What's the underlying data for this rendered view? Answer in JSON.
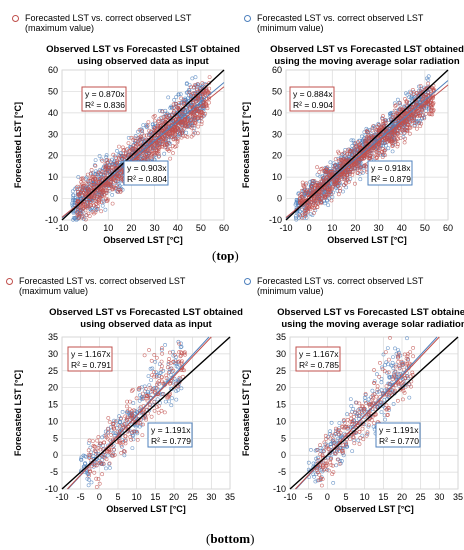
{
  "legends": {
    "top_left": {
      "text": "Forecasted LST vs. correct observed LST\n(maximum value)",
      "color": "#c0504d"
    },
    "top_right": {
      "text": "Forecasted LST vs. correct observed LST\n(minimum value)",
      "color": "#4f81bd"
    },
    "bottom_left": {
      "text": "Forecasted LST vs. correct observed LST\n(maximum value)",
      "color": "#c0504d"
    },
    "bottom_right": {
      "text": "Forecasted LST vs. correct observed LST\n(minimum value)",
      "color": "#4f81bd"
    }
  },
  "captions": {
    "top": "top",
    "bottom": "bottom"
  },
  "chart_data": [
    {
      "type": "scatter",
      "title_lines": [
        "Observed LST vs Forecasted LST obtained",
        "using observed data as input"
      ],
      "xlabel": "Observed LST [°C]",
      "ylabel": "Forecasted LST [°C]",
      "xlim": [
        -10,
        60
      ],
      "ylim": [
        -10,
        60
      ],
      "xticks": [
        -10,
        0,
        10,
        20,
        30,
        40,
        50,
        60
      ],
      "yticks": [
        -10,
        0,
        10,
        20,
        30,
        40,
        50,
        60
      ],
      "grid": true,
      "series": [
        {
          "color": "#4f81bd",
          "trend_slope": 0.903,
          "eq": "y = 0.903x",
          "r2": "R² = 0.804",
          "cloud": {
            "x_min": -6,
            "x_max": 52,
            "slope": 0.93,
            "spread": 5
          }
        },
        {
          "color": "#c0504d",
          "trend_slope": 0.87,
          "eq": "y = 0.870x",
          "r2": "R² = 0.836",
          "cloud": {
            "x_min": -4,
            "x_max": 54,
            "slope": 0.88,
            "spread": 5
          }
        }
      ],
      "identity_line": true
    },
    {
      "type": "scatter",
      "title_lines": [
        "Observed LST vs Forecasted LST obtained",
        "using the moving average solar radiation"
      ],
      "xlabel": "Observed LST [°C]",
      "ylabel": "Forecasted LST [°C]",
      "xlim": [
        -10,
        60
      ],
      "ylim": [
        -10,
        60
      ],
      "xticks": [
        -10,
        0,
        10,
        20,
        30,
        40,
        50,
        60
      ],
      "yticks": [
        -10,
        0,
        10,
        20,
        30,
        40,
        50,
        60
      ],
      "grid": true,
      "series": [
        {
          "color": "#4f81bd",
          "trend_slope": 0.918,
          "eq": "y = 0.918x",
          "r2": "R² = 0.879",
          "cloud": {
            "x_min": -6,
            "x_max": 52,
            "slope": 0.93,
            "spread": 4
          }
        },
        {
          "color": "#c0504d",
          "trend_slope": 0.884,
          "eq": "y = 0.884x",
          "r2": "R² = 0.904",
          "cloud": {
            "x_min": -4,
            "x_max": 54,
            "slope": 0.89,
            "spread": 4
          }
        }
      ],
      "identity_line": true
    },
    {
      "type": "scatter",
      "title_lines": [
        "Observed LST vs Forecasted LST obtained",
        "using observed data as input"
      ],
      "xlabel": "Observed LST [°C]",
      "ylabel": "Forecasted LST [°C]",
      "xlim": [
        -10,
        35
      ],
      "ylim": [
        -10,
        35
      ],
      "xticks": [
        -10,
        -5,
        0,
        5,
        10,
        15,
        20,
        25,
        30,
        35
      ],
      "yticks": [
        -10,
        -5,
        0,
        5,
        10,
        15,
        20,
        25,
        30,
        35
      ],
      "grid": true,
      "series": [
        {
          "color": "#4f81bd",
          "trend_slope": 1.191,
          "eq": "y = 1.191x",
          "r2": "R² = 0.779",
          "cloud": {
            "x_min": -5,
            "x_max": 22,
            "slope": 1.17,
            "spread": 3.5
          }
        },
        {
          "color": "#c0504d",
          "trend_slope": 1.167,
          "eq": "y = 1.167x",
          "r2": "R² = 0.791",
          "cloud": {
            "x_min": -3,
            "x_max": 23,
            "slope": 1.15,
            "spread": 3.5
          }
        }
      ],
      "identity_line": true
    },
    {
      "type": "scatter",
      "title_lines": [
        "Observed LST vs Forecasted LST obtained",
        "using the moving average solar radiation"
      ],
      "xlabel": "Observed LST [°C]",
      "ylabel": "Forecasted LST [°C]",
      "xlim": [
        -10,
        35
      ],
      "ylim": [
        -10,
        35
      ],
      "xticks": [
        -10,
        -5,
        0,
        5,
        10,
        15,
        20,
        25,
        30,
        35
      ],
      "yticks": [
        -10,
        -5,
        0,
        5,
        10,
        15,
        20,
        25,
        30,
        35
      ],
      "grid": true,
      "series": [
        {
          "color": "#4f81bd",
          "trend_slope": 1.191,
          "eq": "y = 1.191x",
          "r2": "R² = 0.770",
          "cloud": {
            "x_min": -5,
            "x_max": 22,
            "slope": 1.17,
            "spread": 3.5
          }
        },
        {
          "color": "#c0504d",
          "trend_slope": 1.167,
          "eq": "y = 1.167x",
          "r2": "R² = 0.785",
          "cloud": {
            "x_min": -3,
            "x_max": 23,
            "slope": 1.15,
            "spread": 3.5
          }
        }
      ],
      "identity_line": true
    }
  ]
}
